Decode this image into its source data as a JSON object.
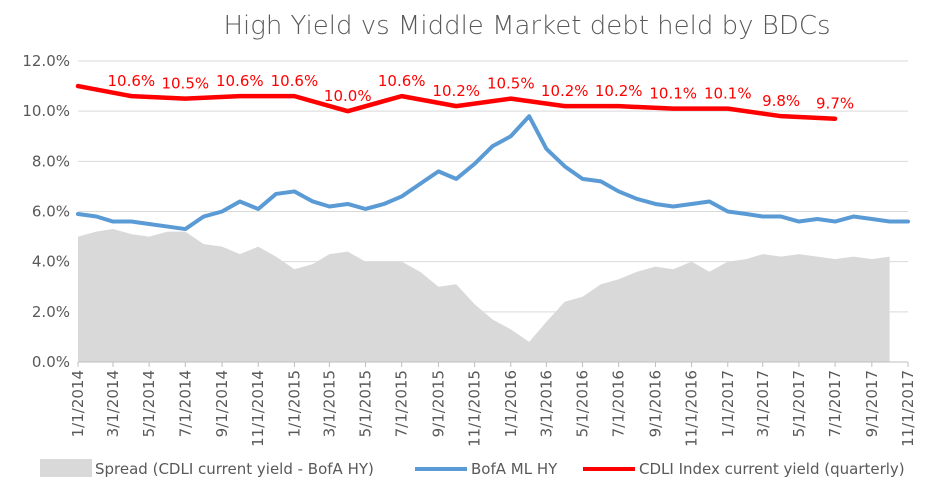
{
  "chart_data": {
    "type": "line",
    "title": "High Yield  vs  Middle Market debt held by BDCs",
    "xlabel": "",
    "ylabel": "",
    "ylim": [
      0.0,
      12.0
    ],
    "y_ticks": [
      "0.0%",
      "2.0%",
      "4.0%",
      "6.0%",
      "8.0%",
      "10.0%",
      "12.0%"
    ],
    "x_range": [
      "2014-01-01",
      "2017-11-01"
    ],
    "x_ticks": [
      "1/1/2014",
      "3/1/2014",
      "5/1/2014",
      "7/1/2014",
      "9/1/2014",
      "11/1/2014",
      "1/1/2015",
      "3/1/2015",
      "5/1/2015",
      "7/1/2015",
      "9/1/2015",
      "11/1/2015",
      "1/1/2016",
      "3/1/2016",
      "5/1/2016",
      "7/1/2016",
      "9/1/2016",
      "11/1/2016",
      "1/1/2017",
      "3/1/2017",
      "5/1/2017",
      "7/1/2017",
      "9/1/2017",
      "11/1/2017"
    ],
    "grid": "horizontal",
    "legend_position": "bottom",
    "series": [
      {
        "name": "Spread (CDLI current yield - BofA HY)",
        "type": "area",
        "color": "#d9d9d9",
        "x": [
          "2014-01-01",
          "2014-02-01",
          "2014-03-01",
          "2014-04-01",
          "2014-05-01",
          "2014-06-01",
          "2014-07-01",
          "2014-08-01",
          "2014-09-01",
          "2014-10-01",
          "2014-11-01",
          "2014-12-01",
          "2015-01-01",
          "2015-02-01",
          "2015-03-01",
          "2015-04-01",
          "2015-05-01",
          "2015-06-01",
          "2015-07-01",
          "2015-08-01",
          "2015-09-01",
          "2015-10-01",
          "2015-11-01",
          "2015-12-01",
          "2016-01-01",
          "2016-02-01",
          "2016-03-01",
          "2016-04-01",
          "2016-05-01",
          "2016-06-01",
          "2016-07-01",
          "2016-08-01",
          "2016-09-01",
          "2016-10-01",
          "2016-11-01",
          "2016-12-01",
          "2017-01-01",
          "2017-02-01",
          "2017-03-01",
          "2017-04-01",
          "2017-05-01",
          "2017-06-01",
          "2017-07-01",
          "2017-08-01",
          "2017-09-01",
          "2017-10-01"
        ],
        "values": [
          5.0,
          5.2,
          5.3,
          5.1,
          5.0,
          5.2,
          5.2,
          4.7,
          4.6,
          4.3,
          4.6,
          4.2,
          3.7,
          3.9,
          4.3,
          4.4,
          4.0,
          4.0,
          4.0,
          3.6,
          3.0,
          3.1,
          2.3,
          1.7,
          1.3,
          0.8,
          1.6,
          2.4,
          2.6,
          3.1,
          3.3,
          3.6,
          3.8,
          3.7,
          4.0,
          3.6,
          4.0,
          4.1,
          4.3,
          4.2,
          4.3,
          4.2,
          4.1,
          4.2,
          4.1,
          4.2
        ]
      },
      {
        "name": "BofA ML HY",
        "type": "line",
        "color": "#5b9bd5",
        "x": [
          "2014-01-01",
          "2014-02-01",
          "2014-03-01",
          "2014-04-01",
          "2014-05-01",
          "2014-06-01",
          "2014-07-01",
          "2014-08-01",
          "2014-09-01",
          "2014-10-01",
          "2014-11-01",
          "2014-12-01",
          "2015-01-01",
          "2015-02-01",
          "2015-03-01",
          "2015-04-01",
          "2015-05-01",
          "2015-06-01",
          "2015-07-01",
          "2015-08-01",
          "2015-09-01",
          "2015-10-01",
          "2015-11-01",
          "2015-12-01",
          "2016-01-01",
          "2016-02-01",
          "2016-03-01",
          "2016-04-01",
          "2016-05-01",
          "2016-06-01",
          "2016-07-01",
          "2016-08-01",
          "2016-09-01",
          "2016-10-01",
          "2016-11-01",
          "2016-12-01",
          "2017-01-01",
          "2017-02-01",
          "2017-03-01",
          "2017-04-01",
          "2017-05-01",
          "2017-06-01",
          "2017-07-01",
          "2017-08-01",
          "2017-09-01",
          "2017-10-01",
          "2017-11-01"
        ],
        "values": [
          5.9,
          5.8,
          5.6,
          5.6,
          5.5,
          5.4,
          5.3,
          5.8,
          6.0,
          6.4,
          6.1,
          6.7,
          6.8,
          6.4,
          6.2,
          6.3,
          6.1,
          6.3,
          6.6,
          7.1,
          7.6,
          7.3,
          7.9,
          8.6,
          9.0,
          9.8,
          8.5,
          7.8,
          7.3,
          7.2,
          6.8,
          6.5,
          6.3,
          6.2,
          6.3,
          6.4,
          6.0,
          5.9,
          5.8,
          5.8,
          5.6,
          5.7,
          5.6,
          5.8,
          5.7,
          5.6,
          5.6
        ]
      },
      {
        "name": "CDLI Index current yield (quarterly)",
        "type": "line",
        "color": "#ff0000",
        "x": [
          "2014-01-01",
          "2014-04-01",
          "2014-07-01",
          "2014-10-01",
          "2015-01-01",
          "2015-04-01",
          "2015-07-01",
          "2015-10-01",
          "2016-01-01",
          "2016-04-01",
          "2016-07-01",
          "2016-10-01",
          "2017-01-01",
          "2017-04-01",
          "2017-07-01"
        ],
        "values": [
          11.0,
          10.6,
          10.5,
          10.6,
          10.6,
          10.0,
          10.6,
          10.2,
          10.5,
          10.2,
          10.2,
          10.1,
          10.1,
          9.8,
          9.7
        ],
        "labels": [
          "",
          "10.6%",
          "10.5%",
          "10.6%",
          "10.6%",
          "10.0%",
          "10.6%",
          "10.2%",
          "10.5%",
          "10.2%",
          "10.2%",
          "10.1%",
          "10.1%",
          "9.8%",
          "9.7%"
        ]
      }
    ]
  }
}
